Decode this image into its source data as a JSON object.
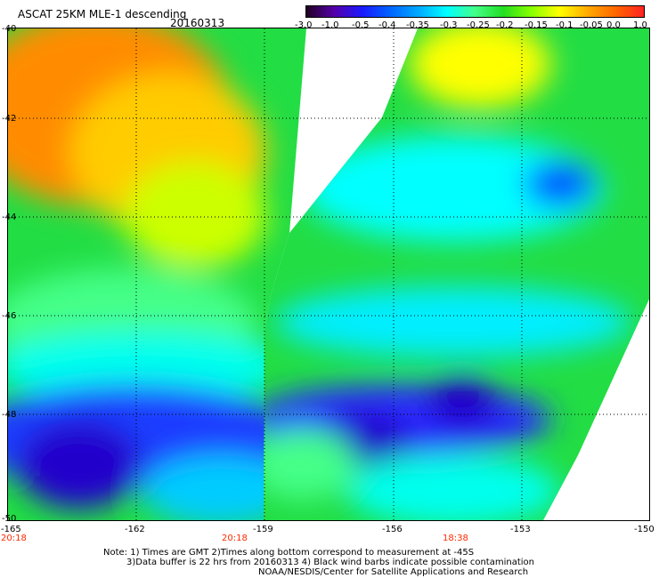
{
  "title": {
    "product": "ASCAT 25KM MLE-1 descending",
    "date": "20160313"
  },
  "colorbar": {
    "labels": [
      "-3.0",
      "-1.0",
      "-0.5",
      "-0.4",
      "-0.35",
      "-0.3",
      "-0.25",
      "-0.2",
      "-0.15",
      "-0.1",
      "-0.05",
      "0.0",
      "1.0"
    ],
    "colors": [
      "#220022",
      "#5500aa",
      "#1a1aff",
      "#0066ff",
      "#00aaff",
      "#00ffff",
      "#44ff88",
      "#22dd22",
      "#88ff00",
      "#ffff00",
      "#ffaa00",
      "#ff6600",
      "#ff2222"
    ]
  },
  "axes": {
    "lat_labels": [
      "-40",
      "-42",
      "-44",
      "-46",
      "-48",
      "-50"
    ],
    "lon_labels": [
      "-165",
      "-162",
      "-159",
      "-156",
      "-153",
      "-150"
    ]
  },
  "times": [
    "20:18",
    "20:18",
    "18:38"
  ],
  "notes": {
    "line1": "Note: 1) Times are GMT 2)Times along bottom correspond to measurement at -45S",
    "line2": "3)Data buffer is 22 hrs from 20160313 4) Black wind barbs indicate possible contamination",
    "line3": "NOAA/NESDIS/Center for Satellite Applications and Research"
  }
}
